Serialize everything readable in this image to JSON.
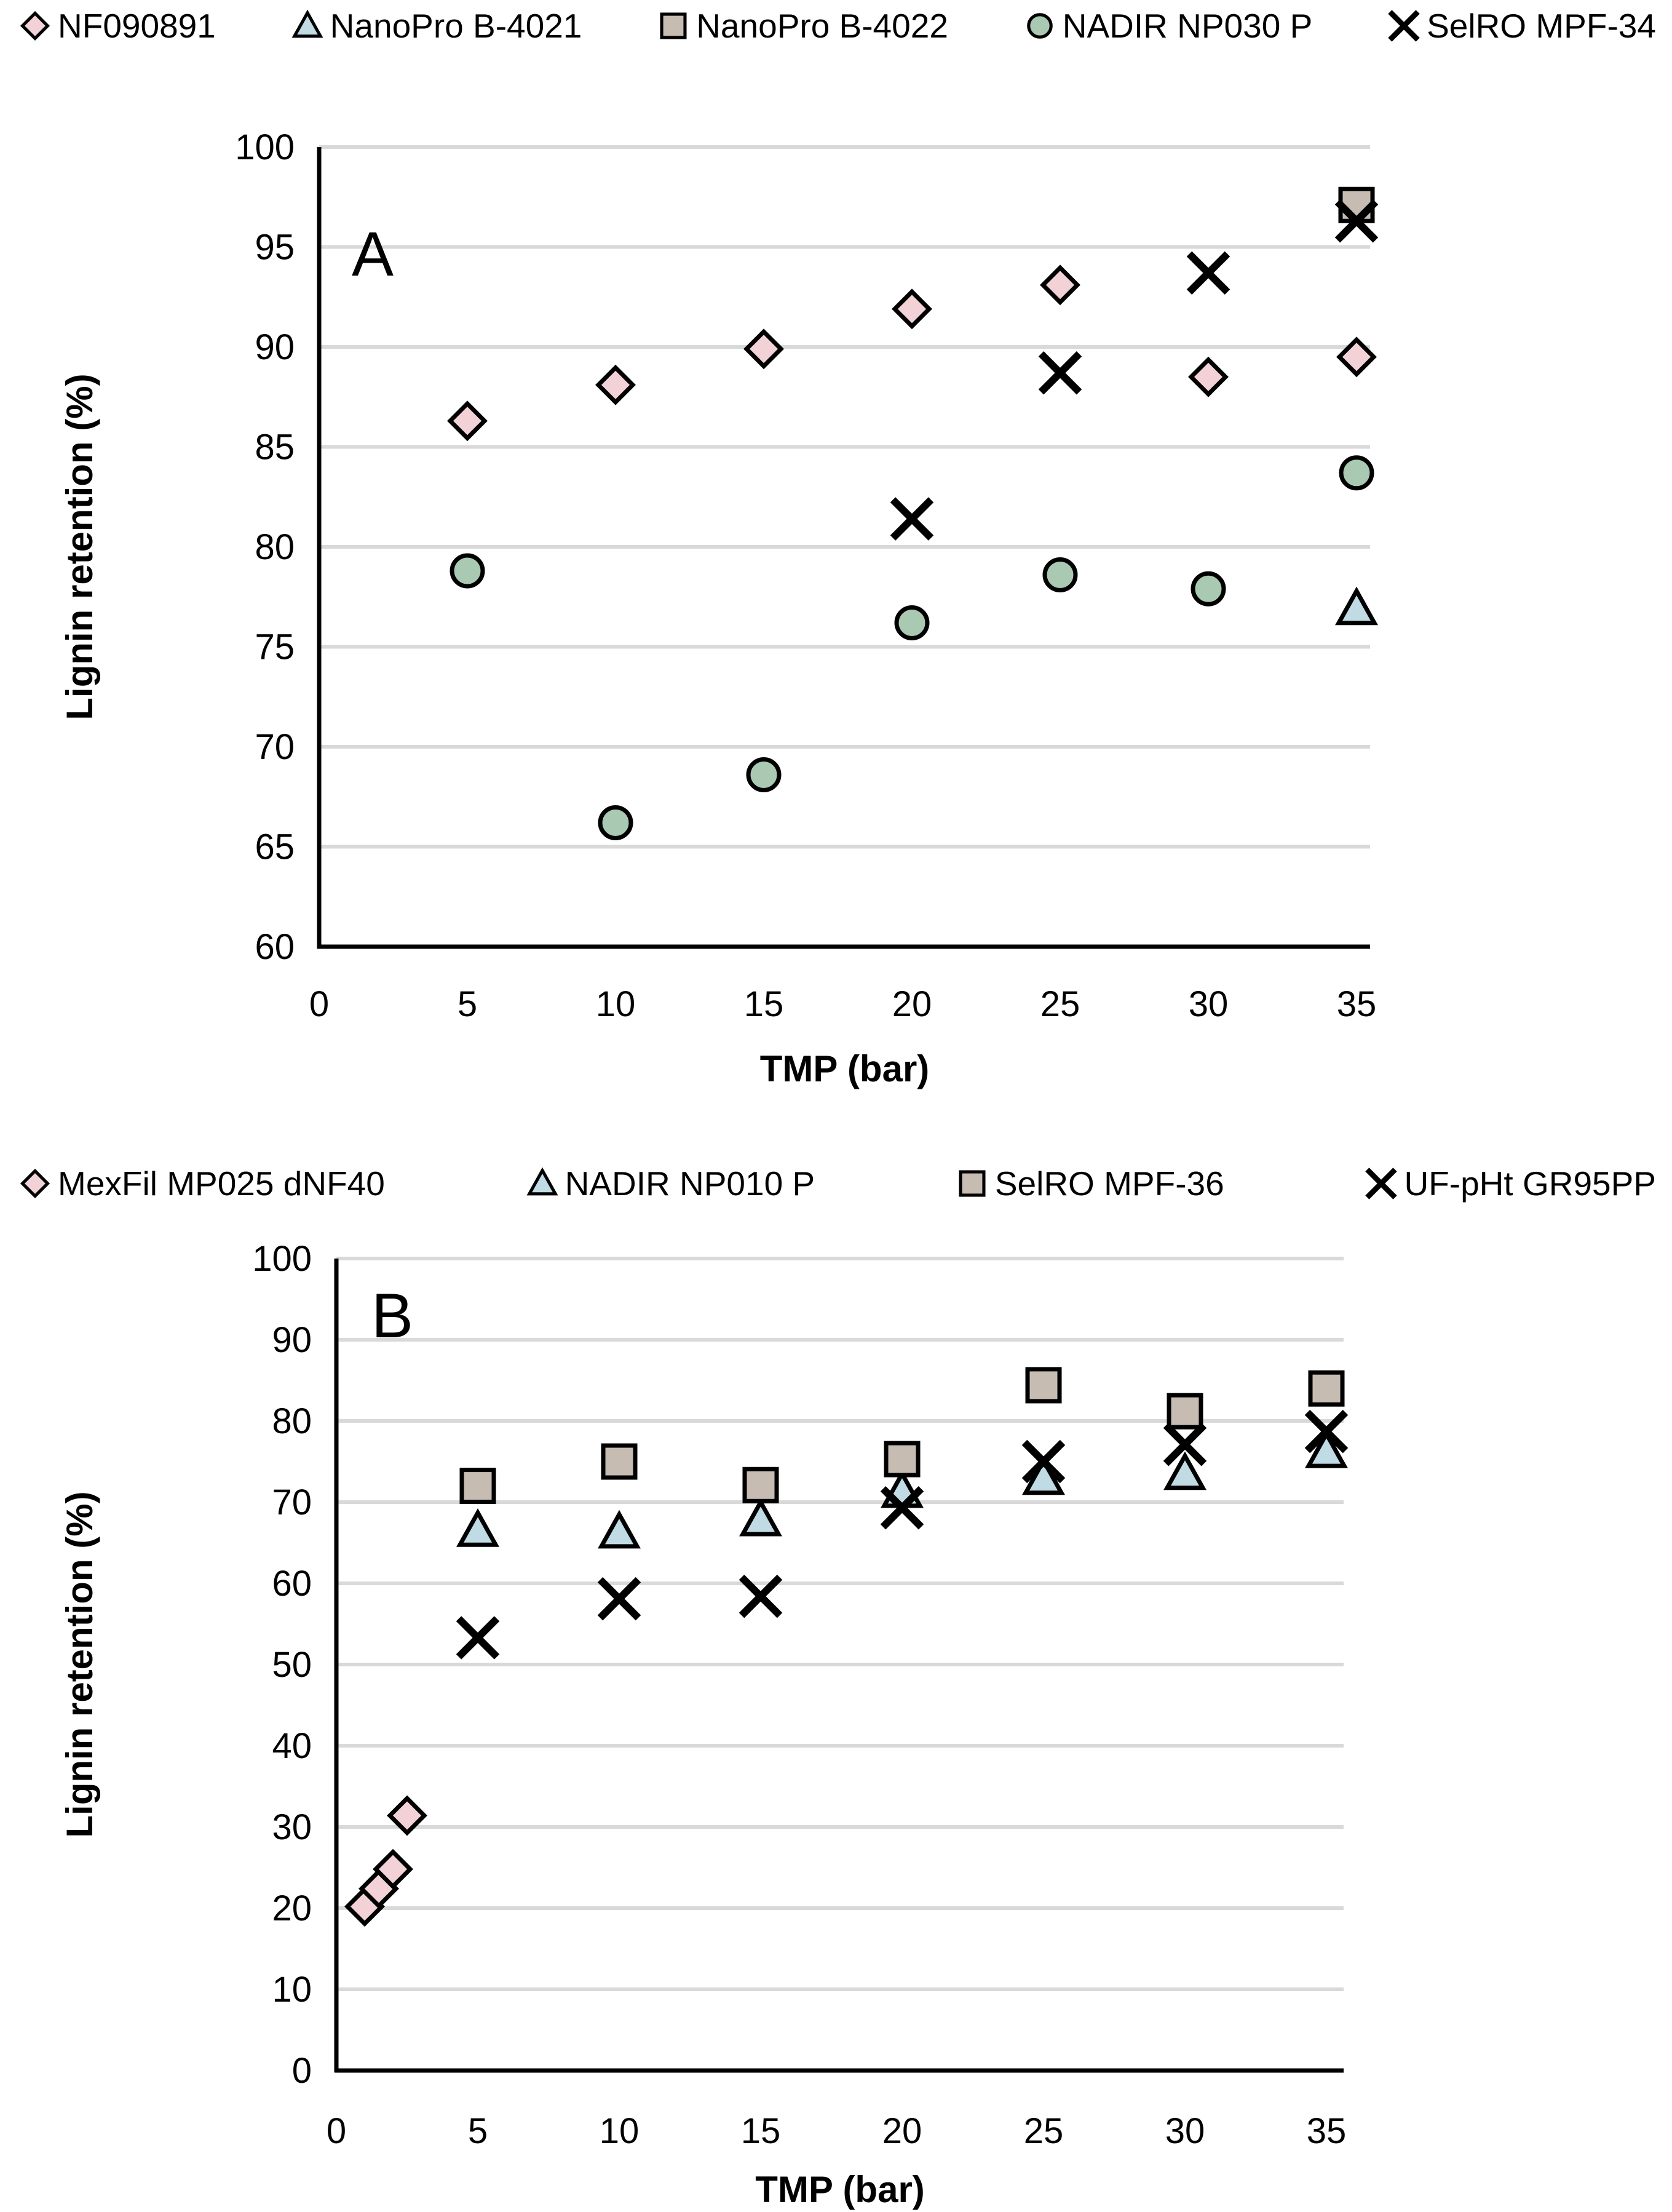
{
  "figure": {
    "description": "Two stacked scatter plots of lignin retention versus transmembrane pressure for different membranes",
    "background_color": "#ffffff",
    "grid_color": "#d9d9d9",
    "axis_color": "#000000",
    "marker_stroke_color": "#000000"
  },
  "chart_data": [
    {
      "panel_label": "A",
      "type": "scatter",
      "xlabel": "TMP (bar)",
      "ylabel": "Lignin retention (%)",
      "xlim": [
        0,
        35.5
      ],
      "ylim": [
        60,
        100
      ],
      "xticks": [
        0,
        5,
        10,
        15,
        20,
        25,
        30,
        35
      ],
      "yticks": [
        60,
        65,
        70,
        75,
        80,
        85,
        90,
        95,
        100
      ],
      "grid": "horizontal",
      "legend_position": "top",
      "series": [
        {
          "name": "NF090891",
          "marker": "diamond",
          "color": "#f2d2d6",
          "points": [
            [
              5,
              86.3
            ],
            [
              10,
              88.1
            ],
            [
              15,
              89.9
            ],
            [
              20,
              91.9
            ],
            [
              25,
              93.1
            ],
            [
              30,
              88.5
            ],
            [
              35,
              89.5
            ]
          ]
        },
        {
          "name": "NanoPro B-4021",
          "marker": "triangle",
          "color": "#c1dbe5",
          "points": [
            [
              35,
              76.9
            ]
          ]
        },
        {
          "name": "NanoPro B-4022",
          "marker": "square",
          "color": "#c6bcb2",
          "points": [
            [
              35,
              97.1
            ]
          ]
        },
        {
          "name": "NADIR NP030 P",
          "marker": "circle",
          "color": "#a9c9b2",
          "points": [
            [
              5,
              78.8
            ],
            [
              10,
              66.2
            ],
            [
              15,
              68.6
            ],
            [
              20,
              76.2
            ],
            [
              25,
              78.6
            ],
            [
              30,
              77.9
            ],
            [
              35,
              83.7
            ]
          ]
        },
        {
          "name": "SelRO MPF-34",
          "marker": "x",
          "color": "#000000",
          "points": [
            [
              20,
              81.4
            ],
            [
              25,
              88.7
            ],
            [
              30,
              93.7
            ],
            [
              35,
              96.3
            ]
          ]
        }
      ]
    },
    {
      "panel_label": "B",
      "type": "scatter",
      "xlabel": "TMP (bar)",
      "ylabel": "Lignin retention (%)",
      "xlim": [
        0,
        35.6
      ],
      "ylim": [
        0,
        100
      ],
      "xticks": [
        0,
        5,
        10,
        15,
        20,
        25,
        30,
        35
      ],
      "yticks": [
        0,
        10,
        20,
        30,
        40,
        50,
        60,
        70,
        80,
        90,
        100
      ],
      "grid": "horizontal",
      "legend_position": "top",
      "series": [
        {
          "name": "MexFil MP025 dNF40",
          "marker": "diamond",
          "color": "#f2d2d6",
          "points": [
            [
              1,
              20.2
            ],
            [
              1.5,
              22.4
            ],
            [
              2,
              24.8
            ],
            [
              2.5,
              31.4
            ]
          ]
        },
        {
          "name": "NADIR NP010 P",
          "marker": "triangle",
          "color": "#c1dbe5",
          "points": [
            [
              5,
              66.5
            ],
            [
              10,
              66.3
            ],
            [
              15,
              67.8
            ],
            [
              20,
              71.3
            ],
            [
              25,
              72.9
            ],
            [
              30,
              73.5
            ],
            [
              35,
              76.2
            ]
          ]
        },
        {
          "name": "SelRO MPF-36",
          "marker": "square",
          "color": "#c6bcb2",
          "points": [
            [
              5,
              72.0
            ],
            [
              10,
              75.0
            ],
            [
              15,
              72.1
            ],
            [
              20,
              75.3
            ],
            [
              25,
              84.4
            ],
            [
              30,
              81.2
            ],
            [
              35,
              84.0
            ]
          ]
        },
        {
          "name": "UF-pHt GR95PP",
          "marker": "x",
          "color": "#000000",
          "points": [
            [
              5,
              53.3
            ],
            [
              10,
              58.1
            ],
            [
              15,
              58.4
            ],
            [
              20,
              69.3
            ],
            [
              25,
              75.0
            ],
            [
              30,
              77.1
            ],
            [
              35,
              78.7
            ]
          ]
        }
      ]
    }
  ]
}
